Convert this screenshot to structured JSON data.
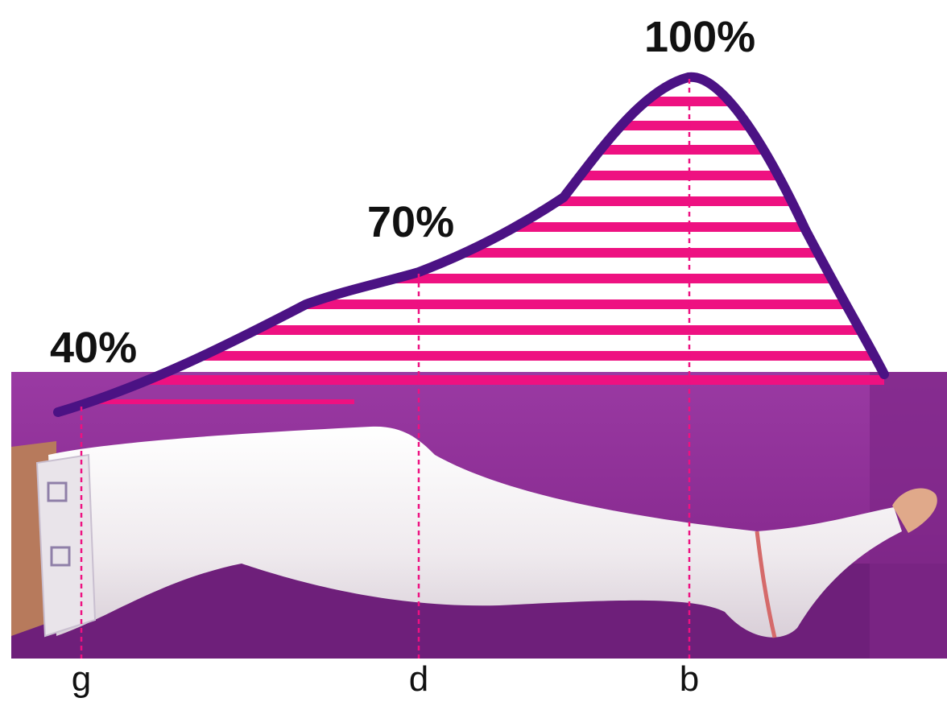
{
  "chart_data": {
    "type": "area",
    "title": "",
    "x": [
      "g",
      "d",
      "b"
    ],
    "values_percent": [
      40,
      70,
      100
    ],
    "labels": [
      "40%",
      "70%",
      "100%"
    ]
  },
  "colors": {
    "curve": "#4b1284",
    "stripes": "#ee1181",
    "marker_lines": "#ee1181",
    "background": "#8a2c92",
    "floor": "#6e1f7a",
    "stocking": "#f1efef",
    "text": "#111111"
  }
}
